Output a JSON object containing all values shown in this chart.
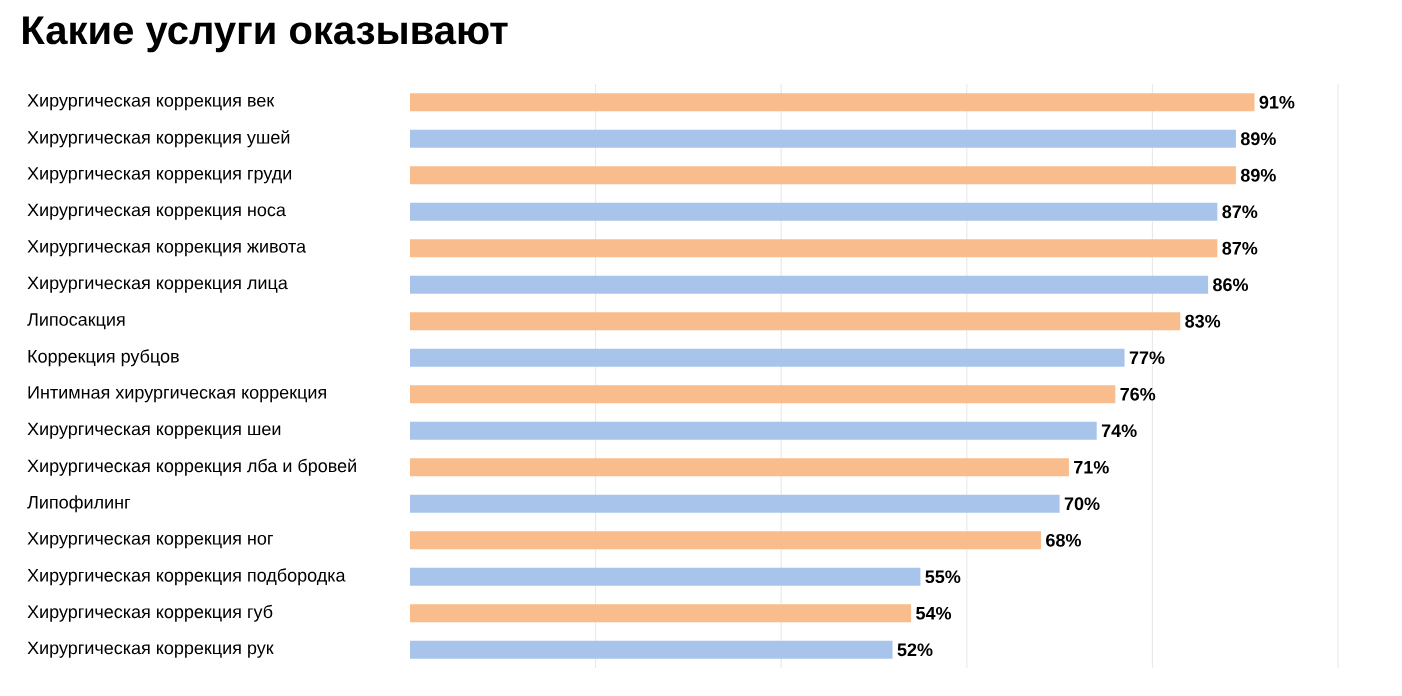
{
  "chart_data": {
    "type": "bar",
    "orientation": "horizontal",
    "title": "Какие услуги оказывают",
    "categories": [
      "Хирургическая коррекция век",
      "Хирургическая коррекция ушей",
      "Хирургическая коррекция груди",
      "Хирургическая коррекция носа",
      "Хирургическая коррекция живота",
      "Хирургическая коррекция лица",
      "Липосакция",
      "Коррекция рубцов",
      "Интимная хирургическая коррекция",
      "Хирургическая коррекция шеи",
      "Хирургическая коррекция лба и бровей",
      "Липофилинг",
      "Хирургическая коррекция ног",
      "Хирургическая коррекция подбородка",
      "Хирургическая коррекция губ",
      "Хирургическая коррекция рук"
    ],
    "values": [
      91,
      89,
      89,
      87,
      87,
      86,
      83,
      77,
      76,
      74,
      71,
      70,
      68,
      55,
      54,
      52
    ],
    "value_labels": [
      "91%",
      "89%",
      "89%",
      "87%",
      "87%",
      "86%",
      "83%",
      "77%",
      "76%",
      "74%",
      "71%",
      "70%",
      "68%",
      "55%",
      "54%",
      "52%"
    ],
    "colors": [
      "#f9bc8c",
      "#a8c4ea",
      "#f9bc8c",
      "#a8c4ea",
      "#f9bc8c",
      "#a8c4ea",
      "#f9bc8c",
      "#a8c4ea",
      "#f9bc8c",
      "#a8c4ea",
      "#f9bc8c",
      "#a8c4ea",
      "#f9bc8c",
      "#a8c4ea",
      "#f9bc8c",
      "#a8c4ea"
    ],
    "xlim": [
      0,
      100
    ],
    "xticks": [
      {
        "value": 20,
        "label": null
      },
      {
        "value": 40,
        "label": null
      },
      {
        "value": 60,
        "label": null
      },
      {
        "value": 80,
        "label": null
      },
      {
        "value": 100,
        "label": null
      }
    ],
    "grid": "x",
    "tick_labels": "y"
  }
}
